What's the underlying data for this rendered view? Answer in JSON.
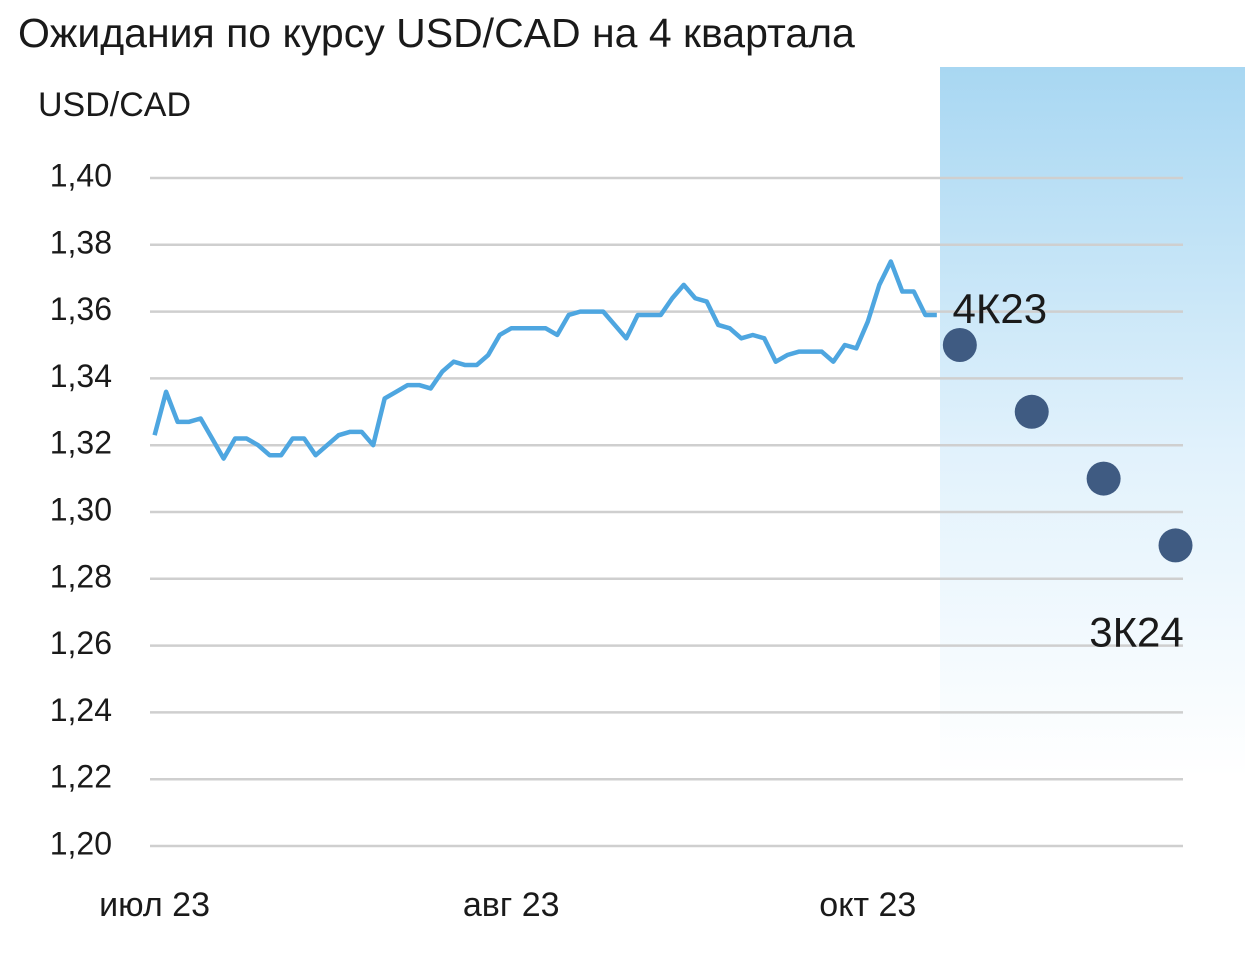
{
  "chart_data": {
    "type": "line",
    "title": "Ожидания по курсу USD/CAD на 4 квартала",
    "y_label": "USD/CAD",
    "x": [
      0,
      1,
      2,
      3,
      4,
      5,
      6,
      7,
      8,
      9,
      10,
      11,
      12,
      13,
      14,
      15,
      16,
      17,
      18,
      19,
      20,
      21,
      22,
      23,
      24,
      25,
      26,
      27,
      28,
      29,
      30,
      31,
      32,
      33,
      34,
      35,
      36,
      37,
      38,
      39,
      40,
      41,
      42,
      43,
      44,
      45,
      46,
      47,
      48,
      49,
      50,
      51,
      52,
      53,
      54,
      55,
      56,
      57,
      58,
      59,
      60,
      61,
      62,
      63,
      64,
      65,
      66,
      67,
      68
    ],
    "series": [
      {
        "color": "#4ea6e0",
        "values": [
          1.323,
          1.336,
          1.327,
          1.327,
          1.328,
          1.322,
          1.316,
          1.322,
          1.322,
          1.32,
          1.317,
          1.317,
          1.322,
          1.322,
          1.317,
          1.32,
          1.323,
          1.324,
          1.324,
          1.32,
          1.334,
          1.336,
          1.338,
          1.338,
          1.337,
          1.342,
          1.345,
          1.344,
          1.344,
          1.347,
          1.353,
          1.355,
          1.355,
          1.355,
          1.355,
          1.353,
          1.359,
          1.36,
          1.36,
          1.36,
          1.356,
          1.352,
          1.359,
          1.359,
          1.359,
          1.364,
          1.368,
          1.364,
          1.363,
          1.356,
          1.355,
          1.352,
          1.353,
          1.352,
          1.345,
          1.347,
          1.348,
          1.348,
          1.348,
          1.345,
          1.35,
          1.349,
          1.357,
          1.368,
          1.375,
          1.366,
          1.366,
          1.359,
          1.359
        ]
      }
    ],
    "forecast": {
      "color": "#3f5b82",
      "x": [
        70,
        76.25,
        82.5,
        88.75
      ],
      "values": [
        1.35,
        1.33,
        1.31,
        1.29
      ],
      "categories": [
        "4К23",
        null,
        null,
        "3К24"
      ]
    },
    "xlim": [
      -0.4,
      89.4
    ],
    "xticks": [
      {
        "value": 0,
        "label": "июл 23"
      },
      {
        "value": 31,
        "label": "авг 23"
      },
      {
        "value": 62,
        "label": "окт 23"
      }
    ],
    "ylim": [
      1.2,
      1.4
    ],
    "yticks": [
      {
        "value": 1.2,
        "label": "1,20"
      },
      {
        "value": 1.22,
        "label": "1,22"
      },
      {
        "value": 1.24,
        "label": "1,24"
      },
      {
        "value": 1.26,
        "label": "1,26"
      },
      {
        "value": 1.28,
        "label": "1,28"
      },
      {
        "value": 1.3,
        "label": "1,30"
      },
      {
        "value": 1.32,
        "label": "1,32"
      },
      {
        "value": 1.34,
        "label": "1,34"
      },
      {
        "value": 1.36,
        "label": "1,36"
      },
      {
        "value": 1.38,
        "label": "1,38"
      },
      {
        "value": 1.4,
        "label": "1,40"
      }
    ],
    "grid": true
  }
}
